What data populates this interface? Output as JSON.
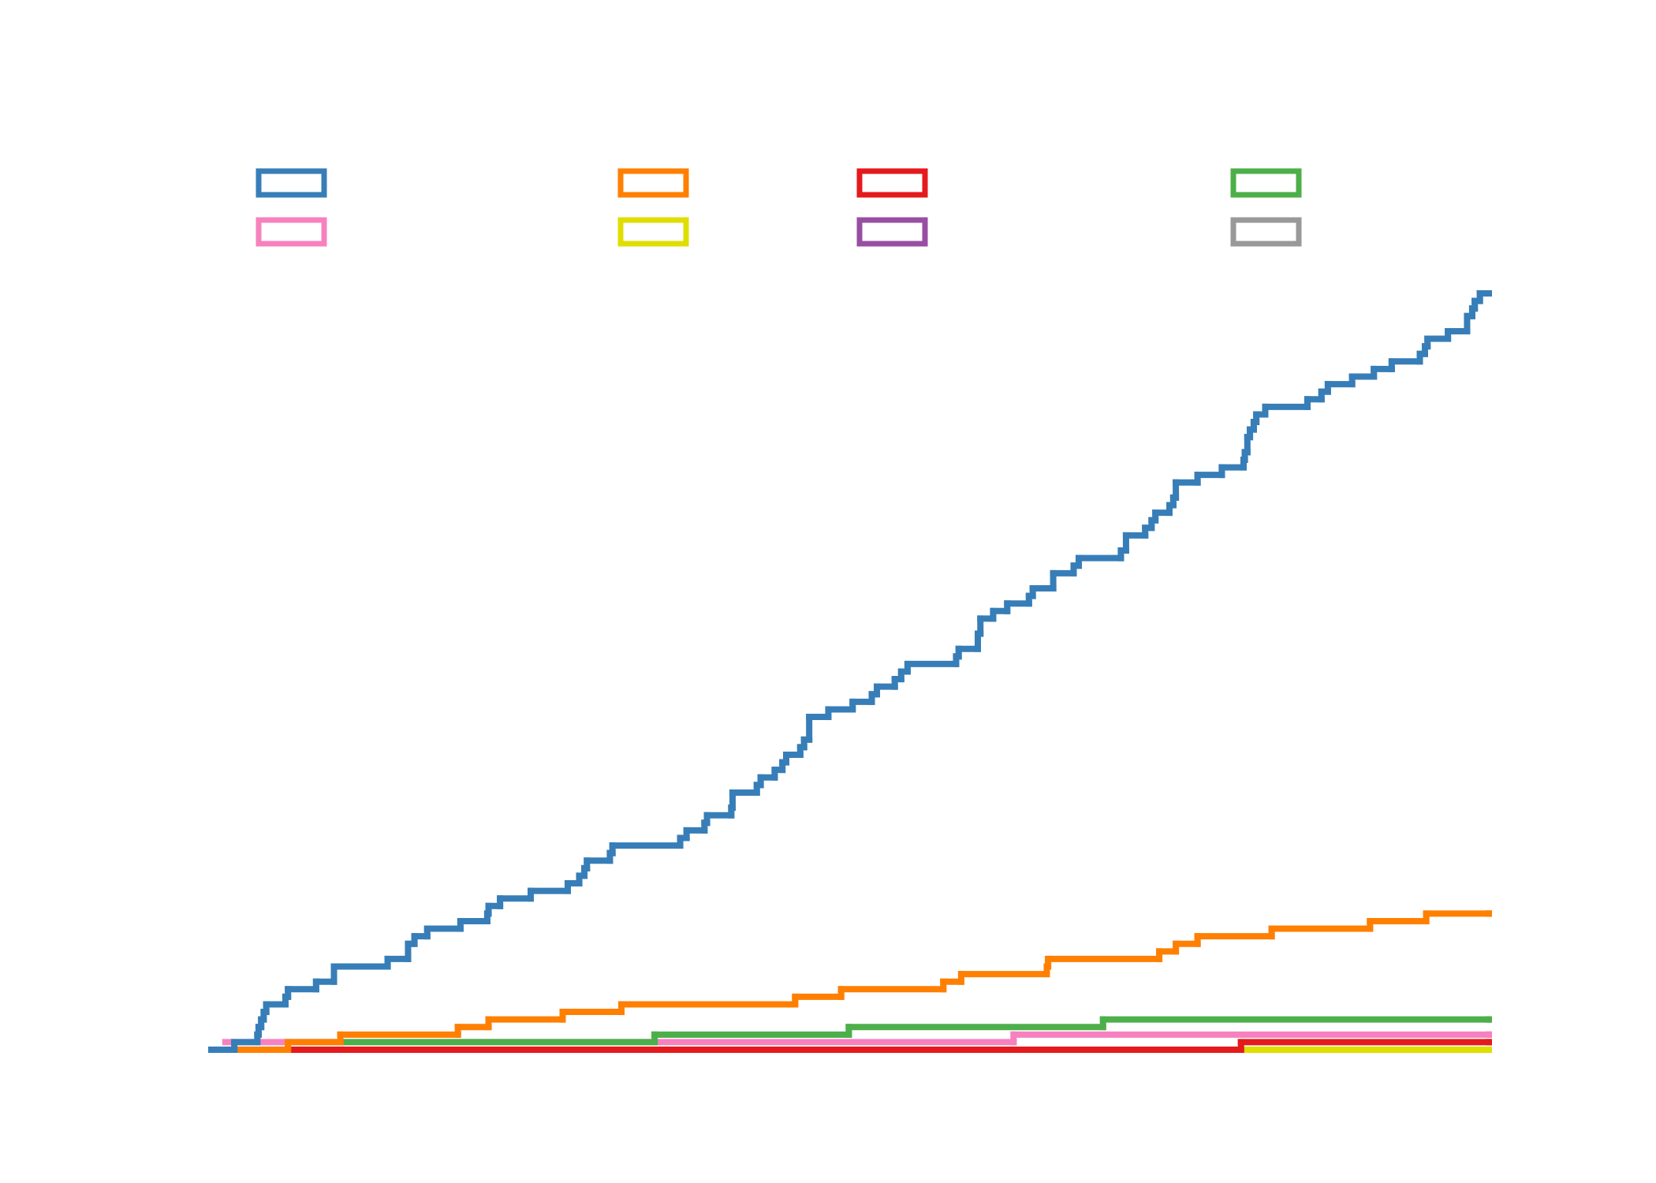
{
  "chart_data": {
    "type": "line",
    "step": "post",
    "xlim": [
      0,
      100
    ],
    "ylim": [
      0,
      100
    ],
    "series": [
      {
        "color": "#377eb8",
        "x": [
          0,
          1.8,
          3.6,
          3.7,
          3.9,
          4.1,
          4.3,
          5.8,
          6.0,
          8.2,
          9.6,
          13.8,
          15.4,
          15.9,
          16.9,
          19.5,
          21.6,
          21.7,
          22.6,
          25.0,
          27.9,
          28.8,
          29.2,
          29.4,
          31.2,
          31.4,
          36.7,
          37.2,
          38.6,
          38.8,
          40.7,
          40.8,
          42.7,
          43.0,
          44.1,
          44.7,
          45.0,
          46.1,
          46.4,
          46.8,
          48.3,
          50.2,
          51.7,
          52.1,
          53.5,
          54.0,
          54.5,
          58.3,
          58.5,
          60.0,
          60.2,
          61.2,
          62.3,
          64.0,
          64.3,
          65.9,
          67.5,
          67.9,
          71.2,
          71.6,
          73.1,
          73.6,
          73.9,
          75.0,
          75.3,
          75.5,
          77.2,
          79.1,
          80.8,
          80.9,
          81.1,
          81.3,
          81.6,
          81.8,
          82.5,
          85.8,
          86.9,
          87.4,
          89.3,
          91.0,
          92.4,
          94.6,
          95.0,
          95.2,
          96.8,
          98.3,
          98.7,
          98.9,
          99.3,
          100
        ],
        "values": [
          0,
          1,
          2,
          3,
          4,
          5,
          6,
          7,
          8,
          9,
          11,
          12,
          14,
          15,
          16,
          17,
          18,
          19,
          20,
          21,
          22,
          23,
          24,
          25,
          26,
          27,
          28,
          29,
          30,
          31,
          32,
          34,
          35,
          36,
          37,
          38,
          39,
          40,
          41,
          44,
          45,
          46,
          47,
          48,
          49,
          50,
          51,
          52,
          53,
          55,
          57,
          58,
          59,
          60,
          61,
          63,
          64,
          65,
          66,
          68,
          69,
          70,
          71,
          72,
          73,
          75,
          76,
          77,
          78,
          79,
          81,
          82,
          83,
          84,
          85,
          86,
          87,
          88,
          89,
          90,
          91,
          92,
          93,
          94,
          95,
          97,
          98,
          99,
          100,
          100
        ]
      },
      {
        "color": "#ff7f00",
        "x": [
          2.2,
          6.0,
          10.1,
          19.3,
          21.7,
          27.5,
          32.1,
          45.7,
          49.3,
          57.3,
          58.7,
          65.4,
          65.5,
          74.2,
          75.5,
          77.2,
          83.0,
          90.7,
          95.1,
          100
        ],
        "values": [
          0,
          1,
          2,
          3,
          4,
          5,
          6,
          7,
          8,
          9,
          10,
          11,
          12,
          13,
          14,
          15,
          16,
          17,
          18,
          18
        ]
      },
      {
        "color": "#e41a1c",
        "x": [
          6.2,
          80.6,
          100
        ],
        "values": [
          0,
          1,
          1
        ]
      },
      {
        "color": "#4daf4a",
        "x": [
          10.3,
          34.7,
          49.9,
          69.8,
          100
        ],
        "values": [
          1,
          2,
          3,
          4,
          4
        ]
      },
      {
        "color": "#f781bf",
        "x": [
          1.1,
          62.8,
          100
        ],
        "values": [
          1,
          2,
          2
        ]
      },
      {
        "color": "#dede00",
        "x": [
          81.0,
          100
        ],
        "values": [
          0,
          0
        ]
      },
      {
        "color": "#984ea3",
        "x": [],
        "values": []
      },
      {
        "color": "#999999",
        "x": [],
        "values": []
      }
    ]
  }
}
